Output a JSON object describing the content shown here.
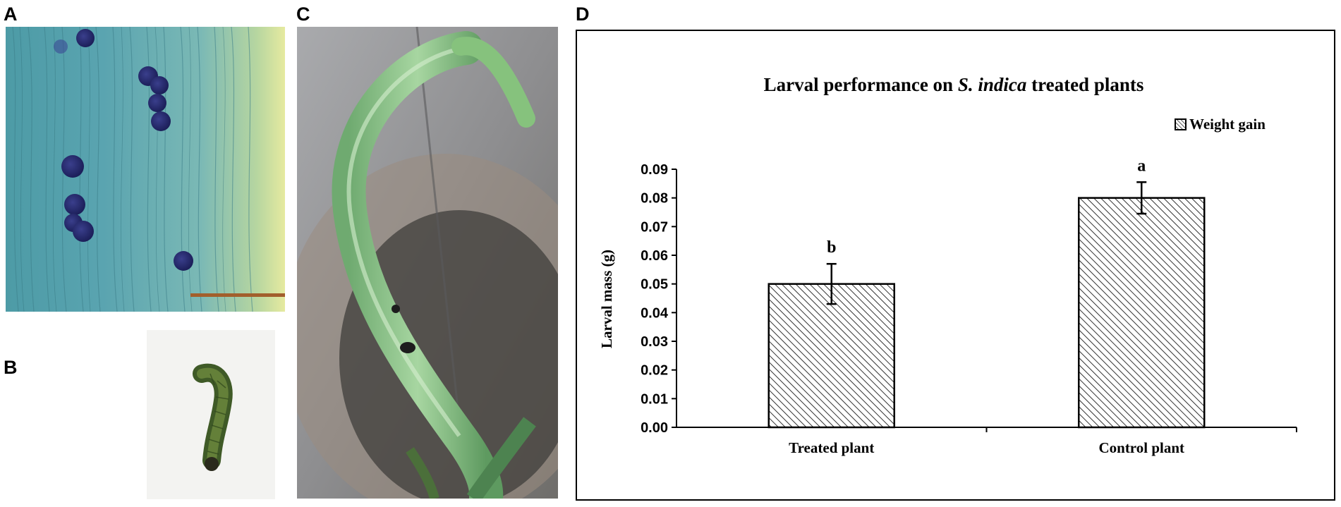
{
  "figure": {
    "panels": [
      {
        "id": "A",
        "label": "A",
        "content": "micrograph"
      },
      {
        "id": "B",
        "label": "B",
        "content": "larva-photo"
      },
      {
        "id": "C",
        "label": "C",
        "content": "plant-photo"
      },
      {
        "id": "D",
        "label": "D",
        "content": "bar-chart"
      }
    ]
  },
  "chart_data": {
    "type": "bar",
    "title_plain": "Larval performance on ",
    "title_italic": "S. indica",
    "title_end": " treated plants",
    "legend": "Weight gain",
    "legend_position": "top-right",
    "ylabel": "Larval mass (g)",
    "xlabel": "",
    "categories": [
      "Treated plant",
      "Control plant"
    ],
    "series": [
      {
        "name": "Weight gain",
        "values": [
          0.05,
          0.08
        ],
        "errors": [
          0.007,
          0.0055
        ],
        "letters": [
          "b",
          "a"
        ]
      }
    ],
    "ylim": [
      0,
      0.09
    ],
    "yticks": [
      "0.00",
      "0.01",
      "0.02",
      "0.03",
      "0.04",
      "0.05",
      "0.06",
      "0.07",
      "0.08",
      "0.09"
    ],
    "grid": false,
    "fill_pattern": "diagonal-hatch"
  }
}
